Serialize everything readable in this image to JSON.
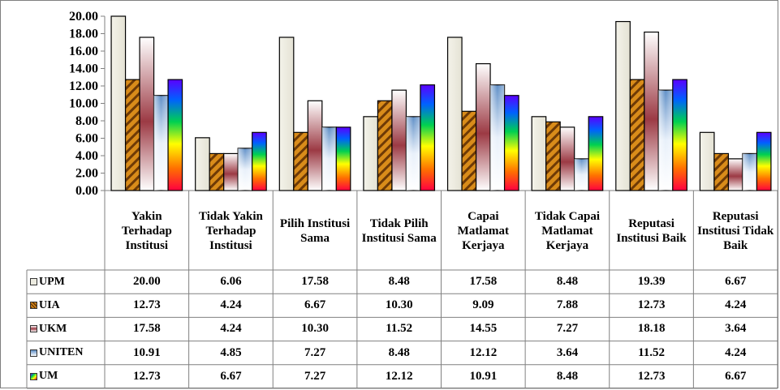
{
  "chart_data": {
    "type": "bar",
    "categories": [
      "Yakin Terhadap Institusi",
      "Tidak Yakin Terhadap Institusi",
      "Pilih Institusi Sama",
      "Tidak Pilih Institusi Sama",
      "Capai Matlamat Kerjaya",
      "Tidak Capai Matlamat Kerjaya",
      "Reputasi Institusi Baik",
      "Reputasi Institusi Tidak Baik"
    ],
    "series": [
      {
        "name": "UPM",
        "values": [
          20.0,
          6.06,
          17.58,
          8.48,
          17.58,
          8.48,
          19.39,
          6.67
        ],
        "color": "#ecebe0"
      },
      {
        "name": "UIA",
        "values": [
          12.73,
          4.24,
          6.67,
          10.3,
          9.09,
          7.88,
          12.73,
          4.24
        ],
        "color": "#c57c14"
      },
      {
        "name": "UKM",
        "values": [
          17.58,
          4.24,
          10.3,
          11.52,
          14.55,
          7.27,
          18.18,
          3.64
        ],
        "color": "#b0646a"
      },
      {
        "name": "UNITEN",
        "values": [
          10.91,
          4.85,
          7.27,
          8.48,
          12.12,
          3.64,
          11.52,
          4.24
        ],
        "color": "#9fbfdf"
      },
      {
        "name": "UM",
        "values": [
          12.73,
          6.67,
          7.27,
          12.12,
          10.91,
          8.48,
          12.73,
          6.67
        ],
        "color": "#rainbow"
      }
    ],
    "yticks": [
      "0.00",
      "2.00",
      "4.00",
      "6.00",
      "8.00",
      "10.00",
      "12.00",
      "14.00",
      "16.00",
      "18.00",
      "20.00"
    ],
    "ylim": [
      0,
      20
    ],
    "title": "",
    "xlabel": "",
    "ylabel": "",
    "grid": false,
    "legend": "data-table-left"
  }
}
